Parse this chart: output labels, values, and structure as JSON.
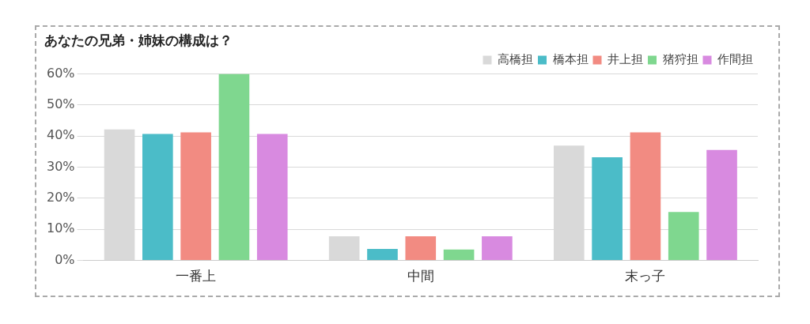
{
  "chart_data": {
    "type": "bar",
    "title": "あなたの兄弟・姉妹の構成は？",
    "categories": [
      "一番上",
      "中間",
      "末っ子"
    ],
    "series": [
      {
        "name": "高橋担",
        "color": "#d9d9d9",
        "values": [
          42.1,
          7.8,
          36.9
        ]
      },
      {
        "name": "橋本担",
        "color": "#4bbcc8",
        "values": [
          40.7,
          3.7,
          33.2
        ]
      },
      {
        "name": "井上担",
        "color": "#f28b82",
        "values": [
          41.2,
          7.8,
          41.2
        ]
      },
      {
        "name": "猪狩担",
        "color": "#7fd78f",
        "values": [
          60,
          3.5,
          15.6
        ]
      },
      {
        "name": "作間担",
        "color": "#d88ae0",
        "values": [
          40.7,
          7.8,
          35.5
        ]
      }
    ],
    "ylim": [
      0,
      60
    ],
    "yticks": [
      {
        "value": 0,
        "label": "0%"
      },
      {
        "value": 10,
        "label": "10%"
      },
      {
        "value": 20,
        "label": "20%"
      },
      {
        "value": 30,
        "label": "30%"
      },
      {
        "value": 40,
        "label": "40%"
      },
      {
        "value": 50,
        "label": "50%"
      },
      {
        "value": 60,
        "label": "60%"
      }
    ],
    "grid": "y",
    "legend": "top right"
  }
}
